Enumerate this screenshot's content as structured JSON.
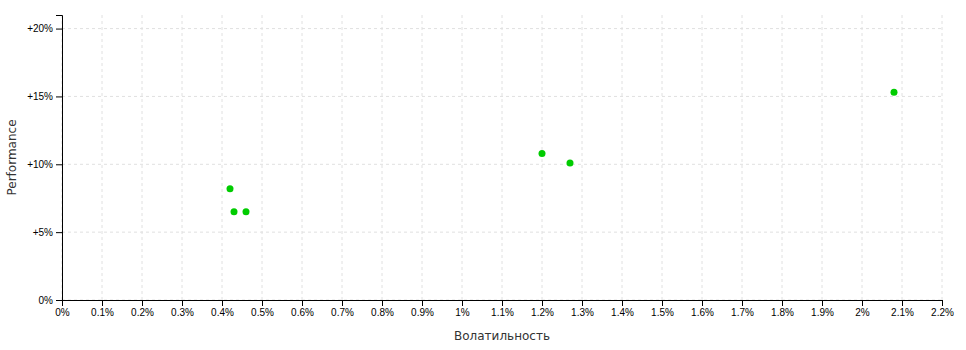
{
  "chart_data": {
    "type": "scatter",
    "xlabel": "Волатильность",
    "ylabel": "Performance",
    "x": [
      0.0042,
      0.0043,
      0.0046,
      0.012,
      0.0127,
      0.0208
    ],
    "values": [
      0.082,
      0.065,
      0.065,
      0.108,
      0.101,
      0.153
    ],
    "color": "#00cc00",
    "xlim": [
      0.0,
      0.022
    ],
    "ylim": [
      0.0,
      0.21
    ],
    "xticks": [
      {
        "value": 0,
        "label": "0%"
      },
      {
        "value": 0.001,
        "label": "0.1%"
      },
      {
        "value": 0.002,
        "label": "0.2%"
      },
      {
        "value": 0.003,
        "label": "0.3%"
      },
      {
        "value": 0.004,
        "label": "0.4%"
      },
      {
        "value": 0.005,
        "label": "0.5%"
      },
      {
        "value": 0.006,
        "label": "0.6%"
      },
      {
        "value": 0.007,
        "label": "0.7%"
      },
      {
        "value": 0.008,
        "label": "0.8%"
      },
      {
        "value": 0.009,
        "label": "0.9%"
      },
      {
        "value": 0.01,
        "label": "1%"
      },
      {
        "value": 0.011,
        "label": "1.1%"
      },
      {
        "value": 0.012,
        "label": "1.2%"
      },
      {
        "value": 0.013,
        "label": "1.3%"
      },
      {
        "value": 0.014,
        "label": "1.4%"
      },
      {
        "value": 0.015,
        "label": "1.5%"
      },
      {
        "value": 0.016,
        "label": "1.6%"
      },
      {
        "value": 0.017,
        "label": "1.7%"
      },
      {
        "value": 0.018,
        "label": "1.8%"
      },
      {
        "value": 0.019,
        "label": "1.9%"
      },
      {
        "value": 0.02,
        "label": "2%"
      },
      {
        "value": 0.021,
        "label": "2.1%"
      },
      {
        "value": 0.022,
        "label": "2.2%"
      }
    ],
    "yticks": [
      {
        "value": 0,
        "label": "0%"
      },
      {
        "value": 0.05,
        "label": "+5%"
      },
      {
        "value": 0.1,
        "label": "+10%"
      },
      {
        "value": 0.15,
        "label": "+15%"
      },
      {
        "value": 0.2,
        "label": "+20%"
      }
    ],
    "grid": true
  }
}
